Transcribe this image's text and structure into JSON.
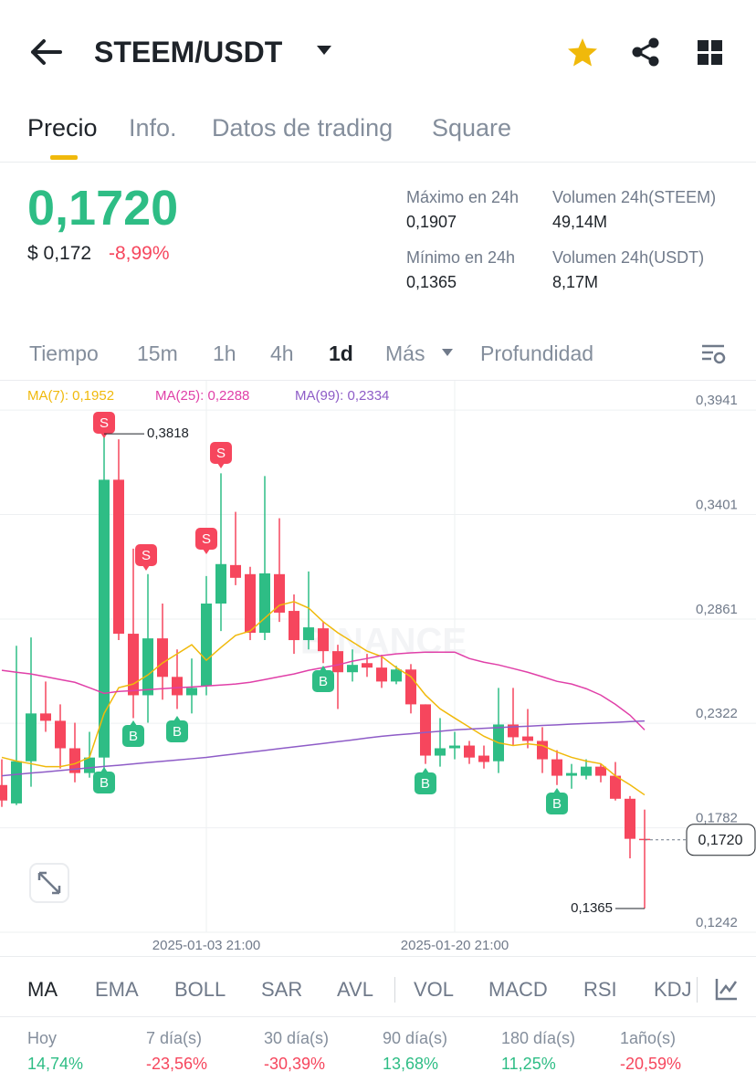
{
  "header": {
    "title": "STEEM/USDT"
  },
  "tabs": [
    "Precio",
    "Info.",
    "Datos de trading",
    "Square"
  ],
  "price": {
    "last": "0,1720",
    "usd": "$ 0,172",
    "change": "-8,99%"
  },
  "stats": [
    {
      "label": "Máximo en 24h",
      "value": "0,1907"
    },
    {
      "label": "Volumen 24h(STEEM)",
      "value": "49,14M"
    },
    {
      "label": "Mínimo en 24h",
      "value": "0,1365"
    },
    {
      "label": "Volumen 24h(USDT)",
      "value": "8,17M"
    }
  ],
  "intervals": [
    "Tiempo",
    "15m",
    "1h",
    "4h",
    "1d",
    "Más",
    "Profundidad"
  ],
  "chart_data": {
    "type": "candlestick",
    "watermark": "BINANCE",
    "up_color": "#2ebd85",
    "down_color": "#f6465d",
    "categories": [
      null,
      null,
      null,
      null,
      null,
      null,
      null,
      null,
      null,
      null,
      null,
      null,
      null,
      null,
      "2025-01-03 21:00",
      null,
      null,
      null,
      null,
      null,
      null,
      null,
      null,
      null,
      null,
      null,
      null,
      null,
      null,
      null,
      null,
      "2025-01-20 21:00",
      null,
      null,
      null,
      null,
      null,
      null,
      null,
      null,
      null,
      null,
      null,
      null,
      null
    ],
    "open": [
      0.2003,
      0.1908,
      0.2126,
      0.2373,
      0.2335,
      0.2193,
      0.2065,
      0.2145,
      0.3581,
      0.2785,
      0.2467,
      0.2761,
      0.2562,
      0.2467,
      0.2515,
      0.2941,
      0.314,
      0.3093,
      0.279,
      0.3093,
      0.2903,
      0.2752,
      0.2813,
      0.2695,
      0.2586,
      0.2633,
      0.261,
      0.2538,
      0.26,
      0.242,
      0.2155,
      0.2193,
      0.2207,
      0.2155,
      0.2126,
      0.2316,
      0.2254,
      0.2231,
      0.2136,
      0.2051,
      0.2051,
      0.2098,
      0.2051,
      0.1932,
      0.1725
    ],
    "high": [
      0.2136,
      0.2723,
      0.2766,
      0.2538,
      0.242,
      0.2325,
      0.2278,
      0.3818,
      0.379,
      0.3225,
      0.3093,
      0.2941,
      0.2704,
      0.2657,
      0.3083,
      0.3614,
      0.3415,
      0.3131,
      0.36,
      0.3382,
      0.2988,
      0.3107,
      0.2846,
      0.2728,
      0.2704,
      0.2681,
      0.2676,
      0.2619,
      0.2628,
      0.242,
      0.2349,
      0.2278,
      0.2231,
      0.2207,
      0.2505,
      0.2505,
      0.2396,
      0.2302,
      0.2183,
      0.2112,
      0.2136,
      0.2112,
      0.2122,
      0.1946,
      0.1876
    ],
    "low": [
      0.189,
      0.1899,
      0.1994,
      0.2278,
      0.2088,
      0.2017,
      0.2041,
      0.2041,
      0.2752,
      0.2349,
      0.2325,
      0.2444,
      0.2396,
      0.2373,
      0.2467,
      0.2799,
      0.3036,
      0.2752,
      0.2752,
      0.2846,
      0.2681,
      0.2704,
      0.2633,
      0.2396,
      0.2538,
      0.2562,
      0.2505,
      0.2524,
      0.2373,
      0.2112,
      0.2098,
      0.2136,
      0.2112,
      0.2088,
      0.2065,
      0.2207,
      0.2193,
      0.2065,
      0.2003,
      0.1984,
      0.2032,
      0.2017,
      0.1923,
      0.1624,
      0.1365
    ],
    "close": [
      0.1923,
      0.2126,
      0.2373,
      0.2335,
      0.2193,
      0.2065,
      0.2145,
      0.3581,
      0.2785,
      0.2467,
      0.2761,
      0.2562,
      0.2467,
      0.2505,
      0.2941,
      0.3145,
      0.3074,
      0.279,
      0.3097,
      0.2894,
      0.2752,
      0.2818,
      0.2695,
      0.2586,
      0.2624,
      0.261,
      0.2538,
      0.26,
      0.242,
      0.2155,
      0.2193,
      0.2207,
      0.2145,
      0.2122,
      0.2316,
      0.225,
      0.2231,
      0.2136,
      0.2051,
      0.2065,
      0.2098,
      0.2051,
      0.1932,
      0.1725,
      0.172
    ],
    "ma_lines": [
      {
        "label": "MA(7): 0,1952",
        "color": "#f0b90b",
        "values": [
          0.2146,
          0.2127,
          0.2113,
          0.2098,
          0.2098,
          0.2113,
          0.2146,
          0.2373,
          0.2506,
          0.2525,
          0.2572,
          0.2634,
          0.2681,
          0.2728,
          0.2648,
          0.2714,
          0.2776,
          0.2799,
          0.2866,
          0.2932,
          0.2951,
          0.2918,
          0.2847,
          0.279,
          0.2743,
          0.2695,
          0.2667,
          0.261,
          0.2563,
          0.2468,
          0.2397,
          0.2349,
          0.2302,
          0.2255,
          0.2221,
          0.2207,
          0.2216,
          0.2207,
          0.2174,
          0.2146,
          0.2127,
          0.2113,
          0.2051,
          0.2004,
          0.1952
        ]
      },
      {
        "label": "MA(25): 0,2288",
        "color": "#e040a8",
        "values": [
          0.2596,
          0.2586,
          0.2577,
          0.2563,
          0.2548,
          0.2534,
          0.2506,
          0.2477,
          0.2487,
          0.2491,
          0.2496,
          0.2501,
          0.2506,
          0.251,
          0.2515,
          0.252,
          0.2525,
          0.2534,
          0.2548,
          0.2563,
          0.2577,
          0.2596,
          0.261,
          0.2624,
          0.2643,
          0.2657,
          0.2672,
          0.2681,
          0.2686,
          0.269,
          0.269,
          0.269,
          0.2657,
          0.2638,
          0.2624,
          0.2605,
          0.2586,
          0.2563,
          0.2539,
          0.2525,
          0.2501,
          0.2468,
          0.242,
          0.2364,
          0.2288
        ]
      },
      {
        "label": "MA(99): 0,2334",
        "color": "#8e5cc7",
        "values": [
          0.2051,
          0.2058,
          0.2065,
          0.2071,
          0.2078,
          0.2085,
          0.2092,
          0.2099,
          0.2105,
          0.2112,
          0.2119,
          0.2126,
          0.2132,
          0.2139,
          0.2146,
          0.2155,
          0.2164,
          0.2173,
          0.2182,
          0.2191,
          0.22,
          0.2209,
          0.2218,
          0.2227,
          0.2236,
          0.2246,
          0.2255,
          0.2262,
          0.2268,
          0.2275,
          0.2281,
          0.2288,
          0.2292,
          0.2296,
          0.23,
          0.2304,
          0.2307,
          0.2311,
          0.2314,
          0.2318,
          0.2321,
          0.2324,
          0.2327,
          0.2331,
          0.2334
        ]
      }
    ],
    "signals": [
      "S",
      "S",
      "S",
      "S",
      "B",
      "B",
      "B",
      "B",
      "B",
      "B"
    ],
    "annotations": [
      {
        "value": 0.3818,
        "label": "0,3818"
      },
      {
        "value": 0.1365,
        "label": "0,1365"
      }
    ],
    "last_price": {
      "value": 0.172,
      "label": "0,1720"
    },
    "ylim": [
      0.1242,
      0.4069
    ],
    "yticks": [
      {
        "value": 0.3941,
        "label": "0,3941"
      },
      {
        "value": 0.3401,
        "label": "0,3401"
      },
      {
        "value": 0.2861,
        "label": "0,2861"
      },
      {
        "value": 0.2322,
        "label": "0,2322"
      },
      {
        "value": 0.1782,
        "label": "0,1782"
      },
      {
        "value": 0.1242,
        "label": "0,1242"
      }
    ],
    "grid": true
  },
  "indicators": [
    "MA",
    "EMA",
    "BOLL",
    "SAR",
    "AVL",
    "VOL",
    "MACD",
    "RSI",
    "KDJ"
  ],
  "performance": [
    {
      "label": "Hoy",
      "value": "14,74%"
    },
    {
      "label": "7 día(s)",
      "value": "-23,56%"
    },
    {
      "label": "30 día(s)",
      "value": "-30,39%"
    },
    {
      "label": "90 día(s)",
      "value": "13,68%"
    },
    {
      "label": "180 día(s)",
      "value": "11,25%"
    },
    {
      "label": "1año(s)",
      "value": "-20,59%"
    }
  ]
}
